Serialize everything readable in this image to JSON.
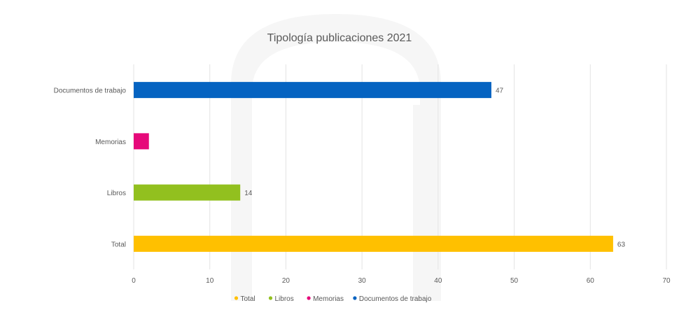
{
  "chart_data": {
    "type": "bar",
    "orientation": "horizontal",
    "title": "Tipología publicaciones 2021",
    "categories": [
      "Total",
      "Libros",
      "Memorias",
      "Documentos de trabajo"
    ],
    "values": [
      63,
      14,
      2,
      47
    ],
    "data_labels": [
      "63",
      "14",
      "",
      "47"
    ],
    "colors": [
      "#ffc000",
      "#92c01f",
      "#e6097a",
      "#0563c1"
    ],
    "xlim": [
      0,
      70
    ],
    "xticks": [
      "0",
      "10",
      "20",
      "30",
      "40",
      "50",
      "60",
      "70"
    ],
    "grid": true,
    "legend_position": "bottom",
    "legend": [
      "Total",
      "Libros",
      "Memorias",
      "Documentos de trabajo"
    ]
  }
}
